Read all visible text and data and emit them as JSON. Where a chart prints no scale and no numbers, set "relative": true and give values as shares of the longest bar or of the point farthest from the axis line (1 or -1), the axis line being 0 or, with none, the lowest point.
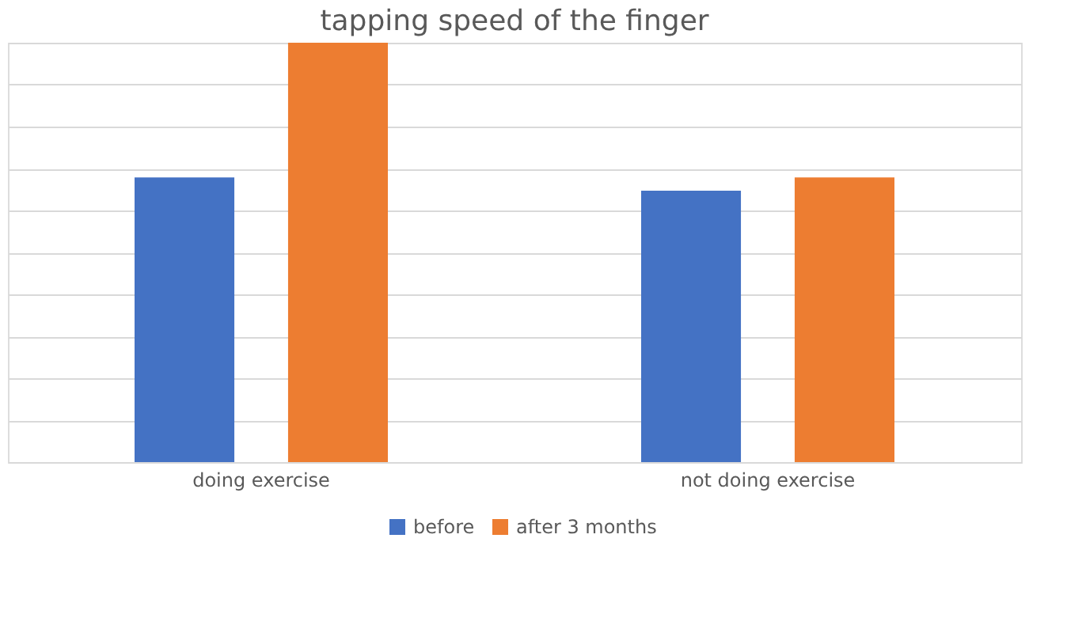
{
  "chart_data": {
    "type": "bar",
    "title": "tapping speed of the finger",
    "categories": [
      "doing exercise",
      "not doing exercise"
    ],
    "relative": true,
    "grid": "y",
    "legend": "bottom",
    "tick_labels": "x",
    "series": [
      {
        "name": "before",
        "color": "#4472c4",
        "values": [
          0.679,
          0.647
        ]
      },
      {
        "name": "after 3 months",
        "color": "#ed7d31",
        "values": [
          1,
          0.679
        ]
      }
    ]
  }
}
